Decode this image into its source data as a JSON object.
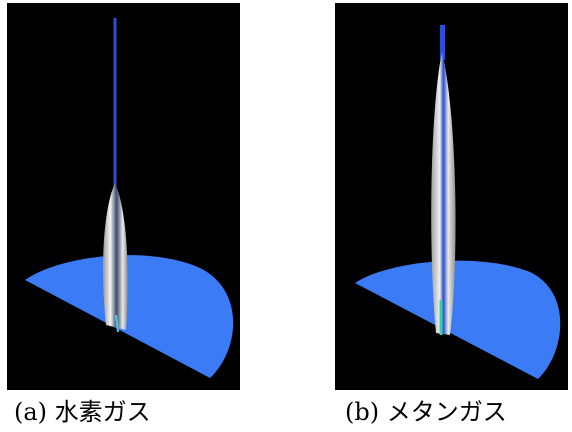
{
  "figures": [
    {
      "caption": "(a) 水素ガス"
    },
    {
      "caption": "(b) メタンガス"
    }
  ]
}
